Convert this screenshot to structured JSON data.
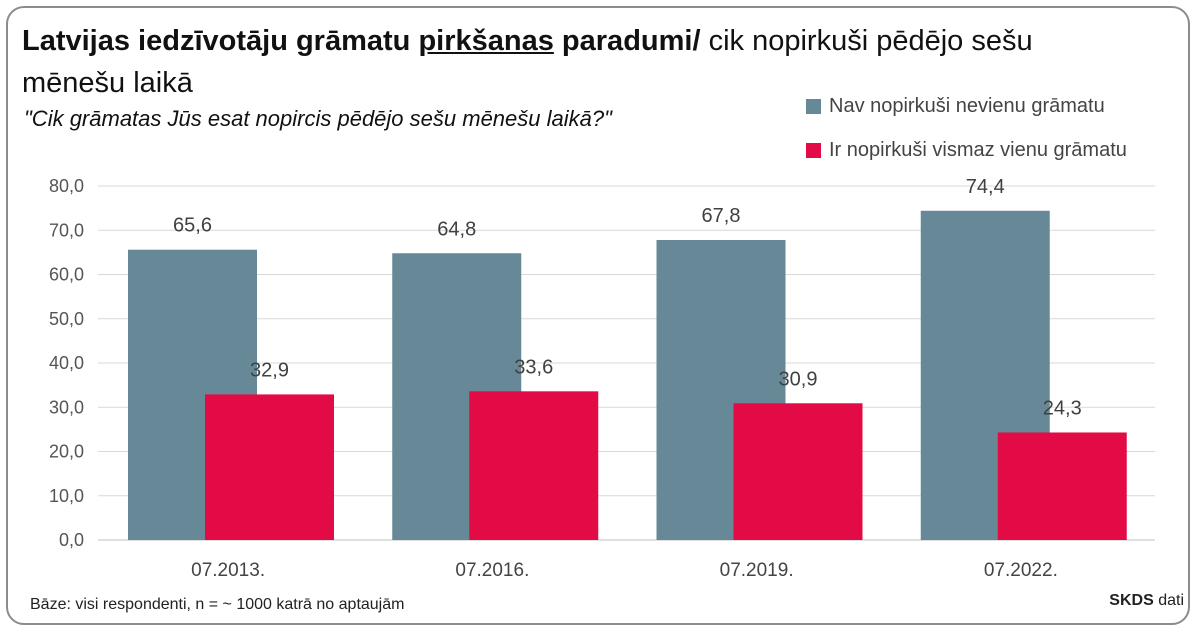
{
  "title": {
    "bold_part_1": "Latvijas iedzīvotāju grāmatu ",
    "bold_underlined": "pirkšanas",
    "bold_part_2": " paradumi/",
    "normal_part": " cik nopirkuši pēdējo sešu mēnešu laikā"
  },
  "subtitle": "\"Cik grāmatas Jūs esat nopircis pēdējo sešu mēnešu laikā?\"",
  "footnote": "Bāze: visi respondenti, n = ~ 1000 katrā no aptaujām",
  "source": {
    "bold": "SKDS",
    "rest": "dati"
  },
  "chart_data": {
    "type": "bar",
    "categories": [
      "07.2013.",
      "07.2016.",
      "07.2019.",
      "07.2022."
    ],
    "series": [
      {
        "name": "Nav nopirkuši nevienu grāmatu",
        "values": [
          65.6,
          64.8,
          67.8,
          74.4
        ],
        "color": "#678896"
      },
      {
        "name": "Ir nopirkuši vismaz vienu grāmatu",
        "values": [
          32.9,
          33.6,
          30.9,
          24.3
        ],
        "color": "#e30b45"
      }
    ],
    "data_labels": [
      [
        "65,6",
        "64,8",
        "67,8",
        "74,4"
      ],
      [
        "32,9",
        "33,6",
        "30,9",
        "24,3"
      ]
    ],
    "y_ticks": [
      "0,0",
      "10,0",
      "20,0",
      "30,0",
      "40,0",
      "50,0",
      "60,0",
      "70,0",
      "80,0"
    ],
    "ylim": [
      0,
      80
    ],
    "grid": true,
    "legend_position": "top-right"
  }
}
